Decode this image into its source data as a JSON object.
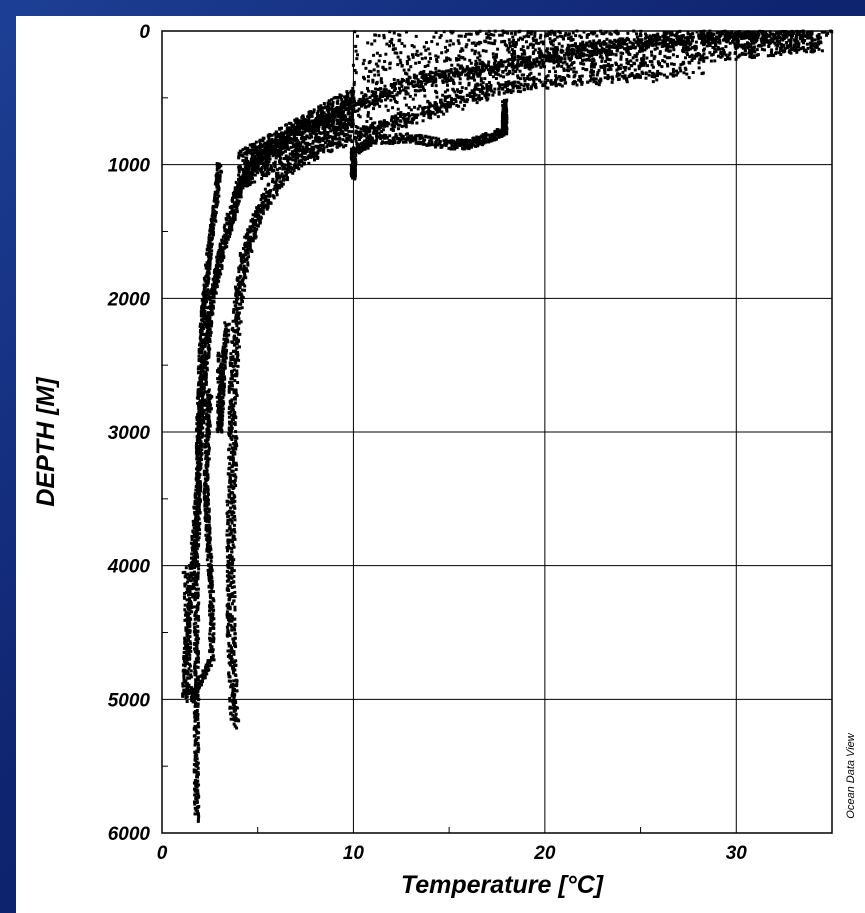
{
  "chart_data": {
    "type": "scatter",
    "xlabel": "Temperature [°C]",
    "ylabel": "DEPTH [M]",
    "credit": "Ocean Data View",
    "xlim": [
      0,
      35
    ],
    "ylim": [
      6000,
      0
    ],
    "y_reversed": true,
    "xticks": [
      0,
      10,
      20,
      30
    ],
    "yticks": [
      0,
      1000,
      2000,
      3000,
      4000,
      5000,
      6000
    ],
    "xtick_labels": [
      "0",
      "10",
      "20",
      "30"
    ],
    "ytick_labels": [
      "0",
      "1000",
      "2000",
      "3000",
      "4000",
      "5000",
      "6000"
    ],
    "grid": true,
    "marker_color": "#000000",
    "series": [
      {
        "points": [
          [
            34.5,
            0
          ],
          [
            32.0,
            20
          ],
          [
            30.0,
            40
          ],
          [
            28.0,
            60
          ],
          [
            26.0,
            80
          ],
          [
            24.0,
            100
          ],
          [
            22.0,
            150
          ],
          [
            20.0,
            200
          ],
          [
            18.0,
            260
          ],
          [
            16.0,
            300
          ],
          [
            14.0,
            350
          ],
          [
            12.0,
            450
          ],
          [
            10.0,
            550
          ],
          [
            8.5,
            650
          ],
          [
            7.0,
            750
          ],
          [
            6.0,
            850
          ],
          [
            5.0,
            950
          ],
          [
            4.5,
            1050
          ],
          [
            4.0,
            1200
          ],
          [
            3.6,
            1400
          ],
          [
            3.2,
            1600
          ],
          [
            2.9,
            1800
          ],
          [
            2.6,
            2000
          ],
          [
            2.4,
            2300
          ],
          [
            2.2,
            2600
          ],
          [
            2.0,
            3000
          ],
          [
            1.9,
            3400
          ],
          [
            1.7,
            3800
          ],
          [
            1.5,
            4200
          ],
          [
            1.3,
            4600
          ],
          [
            1.2,
            5000
          ]
        ]
      },
      {
        "points": [
          [
            27.0,
            300
          ],
          [
            24.0,
            350
          ],
          [
            20.0,
            380
          ],
          [
            18.0,
            420
          ],
          [
            16.0,
            500
          ],
          [
            14.0,
            600
          ],
          [
            12.0,
            700
          ],
          [
            10.0,
            780
          ],
          [
            8.0,
            900
          ],
          [
            6.5,
            1050
          ],
          [
            5.5,
            1250
          ],
          [
            4.8,
            1450
          ],
          [
            4.3,
            1700
          ],
          [
            4.0,
            2000
          ],
          [
            3.8,
            2400
          ],
          [
            3.7,
            2800
          ],
          [
            3.7,
            3200
          ],
          [
            3.6,
            3600
          ],
          [
            3.6,
            4000
          ],
          [
            3.6,
            4400
          ],
          [
            3.7,
            4800
          ],
          [
            3.8,
            5200
          ]
        ]
      },
      {
        "points": [
          [
            3.0,
            1000
          ],
          [
            2.8,
            1300
          ],
          [
            2.5,
            1600
          ],
          [
            2.3,
            1900
          ],
          [
            2.1,
            2200
          ],
          [
            2.0,
            2600
          ],
          [
            1.9,
            3000
          ],
          [
            1.9,
            3500
          ],
          [
            1.8,
            4000
          ],
          [
            1.8,
            4500
          ],
          [
            1.8,
            5000
          ],
          [
            1.8,
            5400
          ],
          [
            1.8,
            5900
          ]
        ]
      },
      {
        "points": [
          [
            3.4,
            2200
          ],
          [
            3.2,
            2500
          ],
          [
            3.1,
            2800
          ],
          [
            3.0,
            3000
          ],
          [
            3.0,
            2400
          ]
        ]
      },
      {
        "points": [
          [
            17.9,
            550
          ],
          [
            17.9,
            650
          ],
          [
            17.9,
            750
          ],
          [
            17.0,
            800
          ],
          [
            16.0,
            850
          ],
          [
            15.0,
            850
          ],
          [
            13.0,
            800
          ],
          [
            11.0,
            820
          ],
          [
            10.0,
            900
          ],
          [
            10.0,
            1000
          ],
          [
            10.0,
            1100
          ]
        ]
      },
      {
        "points": [
          [
            2.5,
            2700
          ],
          [
            2.4,
            3000
          ],
          [
            2.3,
            3400
          ],
          [
            2.4,
            3800
          ],
          [
            2.6,
            4200
          ],
          [
            2.6,
            4700
          ],
          [
            1.5,
            5000
          ],
          [
            1.2,
            4000
          ]
        ]
      }
    ]
  }
}
